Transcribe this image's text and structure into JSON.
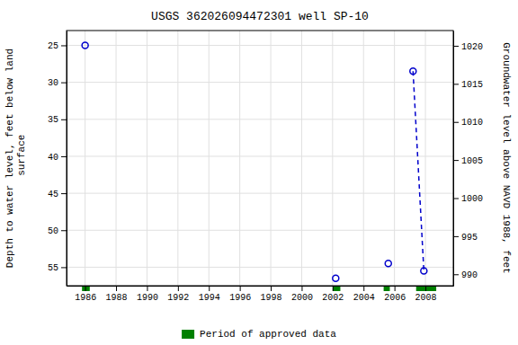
{
  "chart_data": {
    "type": "scatter",
    "title": "USGS 362026094472301 well SP-10",
    "y_label": "Depth to water level, feet below land\n surface",
    "y2_label": "Groundwater level above NAVD 1988, feet",
    "xlim": [
      1984.8,
      2009.8
    ],
    "xticks": [
      1986,
      1988,
      1990,
      1992,
      1994,
      1996,
      1998,
      2000,
      2002,
      2004,
      2006,
      2008
    ],
    "ylim": [
      57.5,
      23.0
    ],
    "yticks": [
      25,
      30,
      35,
      40,
      45,
      50,
      55
    ],
    "y2lim": [
      988.5,
      1022.0
    ],
    "y2ticks": [
      1020,
      1015,
      1010,
      1005,
      1000,
      995,
      990
    ],
    "grid": true,
    "legend": "bottom",
    "series": [
      {
        "type": "line",
        "line_style": "dashed",
        "color": "#0000cc",
        "x": [
          2007.2,
          2007.9
        ],
        "values": [
          28.5,
          55.5
        ]
      },
      {
        "type": "scatter",
        "marker": "circle",
        "color": "#0000cc",
        "x": [
          1986.0,
          2007.2,
          2007.9,
          2002.2,
          2005.6
        ],
        "values": [
          25.0,
          28.5,
          55.5,
          56.5,
          54.5
        ]
      }
    ],
    "approved_periods": {
      "name": "Period of approved data",
      "color": "#008000",
      "ranges": [
        [
          1985.8,
          1986.3
        ],
        [
          2002.0,
          2002.5
        ],
        [
          2005.3,
          2005.7
        ],
        [
          2007.4,
          2008.7
        ]
      ]
    }
  }
}
